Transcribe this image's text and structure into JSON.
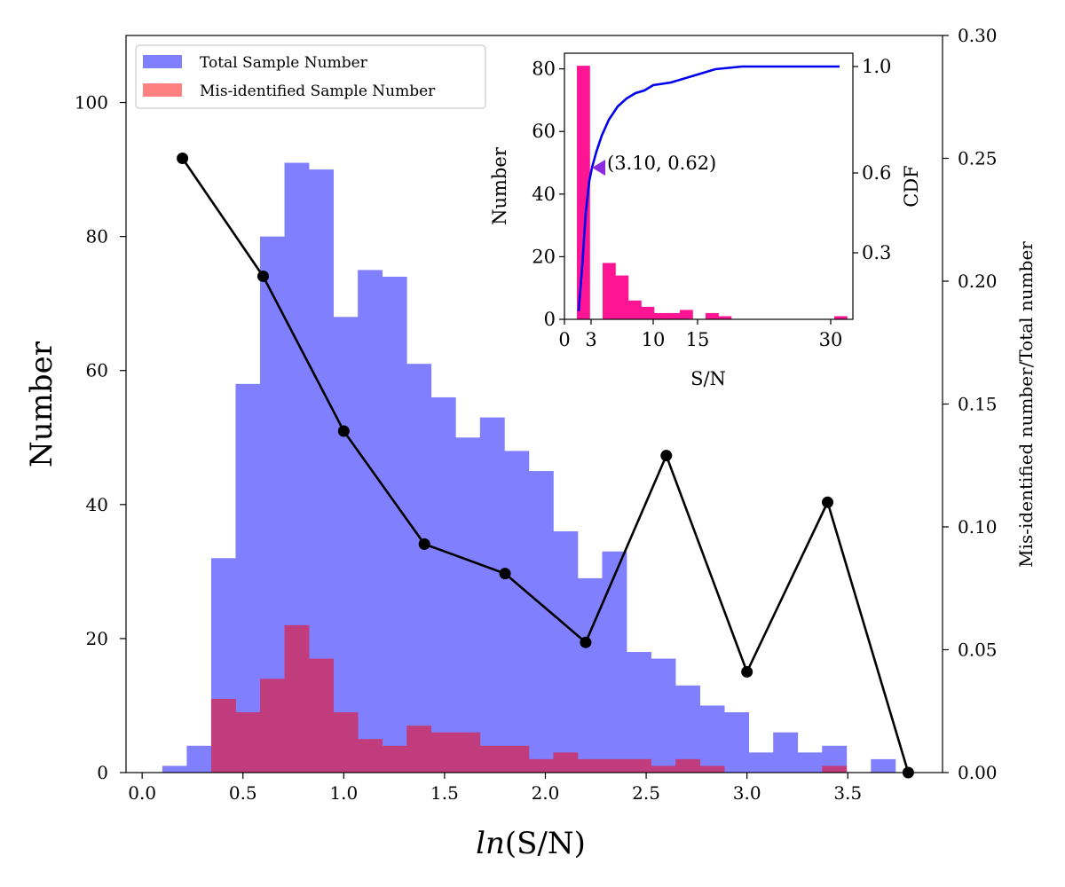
{
  "chart_data": [
    {
      "id": "main",
      "type": "bar+line",
      "xlabel": "ln(S/N)",
      "xlabel_italic_part": "ln",
      "xlabel_rest": "(S/N)",
      "ylabel": "Number",
      "ylabel_right": "Mis-identified number/Total number",
      "xlim": [
        -0.08,
        3.97
      ],
      "ylim": [
        0,
        110
      ],
      "ylim_right": [
        0,
        0.3
      ],
      "x_ticks": [
        0.0,
        0.5,
        1.0,
        1.5,
        2.0,
        2.5,
        3.0,
        3.5
      ],
      "x_tick_labels": [
        "0.0",
        "0.5",
        "1.0",
        "1.5",
        "2.0",
        "2.5",
        "3.0",
        "3.5"
      ],
      "y_ticks": [
        0,
        20,
        40,
        60,
        80,
        100
      ],
      "y_tick_labels": [
        "0",
        "20",
        "40",
        "60",
        "80",
        "100"
      ],
      "y_right_ticks": [
        0.0,
        0.05,
        0.1,
        0.15,
        0.2,
        0.25,
        0.3
      ],
      "y_right_tick_labels": [
        "0.00",
        "0.05",
        "0.10",
        "0.15",
        "0.20",
        "0.25",
        "0.30"
      ],
      "legend": {
        "position": "top-left",
        "entries": [
          {
            "label": "Total Sample Number",
            "color": "#8080ff"
          },
          {
            "label": "Mis-identified Sample Number",
            "color": "#ff8080"
          }
        ]
      },
      "histogram": {
        "bin_start": 0.1,
        "bin_width": 0.1212,
        "total": [
          1,
          4,
          32,
          58,
          80,
          91,
          90,
          68,
          75,
          74,
          61,
          56,
          50,
          53,
          48,
          45,
          36,
          29,
          33,
          18,
          17,
          13,
          10,
          9,
          3,
          6,
          3,
          4,
          0,
          2
        ],
        "misidentified": [
          0,
          0,
          11,
          9,
          14,
          22,
          17,
          9,
          5,
          4,
          7,
          6,
          6,
          4,
          4,
          2,
          3,
          2,
          2,
          2,
          1,
          2,
          1,
          0,
          0,
          0,
          0,
          1,
          0,
          0
        ],
        "total_color": "#8080ff",
        "misidentified_color": "#ff8080",
        "overlap_color": "#c03c7c"
      },
      "ratio_line": {
        "x": [
          0.2,
          0.6,
          1.0,
          1.4,
          1.8,
          2.2,
          2.6,
          3.0,
          3.4,
          3.8
        ],
        "y": [
          0.25,
          0.202,
          0.139,
          0.093,
          0.081,
          0.053,
          0.129,
          0.041,
          0.11,
          0.0
        ],
        "color": "#000000"
      }
    },
    {
      "id": "inset",
      "type": "bar+line",
      "xlabel": "S/N",
      "ylabel": "Number",
      "ylabel_right": "CDF",
      "xlim": [
        0,
        32.5
      ],
      "ylim": [
        0,
        85
      ],
      "ylim_right": [
        0.05,
        1.05
      ],
      "x_ticks": [
        0,
        3,
        10,
        15,
        30
      ],
      "x_tick_labels": [
        "0",
        "3",
        "10",
        "15",
        "30"
      ],
      "y_ticks": [
        0,
        20,
        40,
        60,
        80
      ],
      "y_tick_labels": [
        "0",
        "20",
        "40",
        "60",
        "80"
      ],
      "y_right_ticks": [
        0.3,
        0.6,
        1.0
      ],
      "y_right_tick_labels": [
        "0.3",
        "0.6",
        "1.0"
      ],
      "histogram": {
        "bin_start": 1.4,
        "bin_width": 1.45,
        "values": [
          81,
          0,
          18,
          14,
          6,
          4,
          2,
          2,
          3,
          0,
          2,
          1,
          0,
          0,
          0,
          0,
          0,
          0,
          0,
          0,
          1
        ],
        "color": "#ff1493"
      },
      "cdf_line": {
        "x": [
          1.6,
          2.0,
          2.4,
          2.8,
          3.1,
          3.6,
          4.2,
          5.0,
          6.0,
          7.0,
          8.0,
          9.0,
          10.0,
          12.0,
          14.0,
          17.0,
          20.0,
          25.0,
          30.0,
          31.0
        ],
        "y": [
          0.08,
          0.25,
          0.45,
          0.57,
          0.62,
          0.68,
          0.74,
          0.8,
          0.85,
          0.88,
          0.9,
          0.91,
          0.93,
          0.94,
          0.96,
          0.99,
          1.0,
          1.0,
          1.0,
          1.0
        ],
        "color": "#0000ee"
      },
      "marker": {
        "x": 3.1,
        "y": 0.62,
        "color": "#8a2be2"
      },
      "annotation": "(3.10, 0.62)"
    }
  ]
}
